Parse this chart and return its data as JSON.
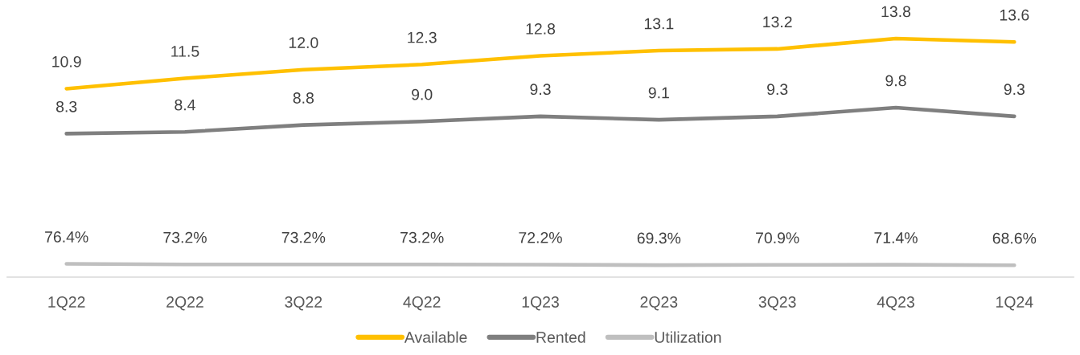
{
  "chart_data": {
    "type": "line",
    "categories": [
      "1Q22",
      "2Q22",
      "3Q22",
      "4Q22",
      "1Q23",
      "2Q23",
      "3Q23",
      "4Q23",
      "1Q24"
    ],
    "series": [
      {
        "name": "Available",
        "color": "#ffc000",
        "values": [
          10.9,
          11.5,
          12.0,
          12.3,
          12.8,
          13.1,
          13.2,
          13.8,
          13.6
        ],
        "value_labels": [
          "10.9",
          "11.5",
          "12.0",
          "12.3",
          "12.8",
          "13.1",
          "13.2",
          "13.8",
          "13.6"
        ]
      },
      {
        "name": "Rented",
        "color": "#7f7f7f",
        "values": [
          8.3,
          8.4,
          8.8,
          9.0,
          9.3,
          9.1,
          9.3,
          9.8,
          9.3
        ],
        "value_labels": [
          "8.3",
          "8.4",
          "8.8",
          "9.0",
          "9.3",
          "9.1",
          "9.3",
          "9.8",
          "9.3"
        ]
      },
      {
        "name": "Utilization",
        "color": "#bfbfbf",
        "values": [
          0.764,
          0.732,
          0.732,
          0.732,
          0.722,
          0.693,
          0.709,
          0.714,
          0.686
        ],
        "value_labels": [
          "76.4%",
          "73.2%",
          "73.2%",
          "73.2%",
          "72.2%",
          "69.3%",
          "70.9%",
          "71.4%",
          "68.6%"
        ]
      }
    ],
    "tick_labels": "x",
    "legend": "bottom",
    "line_style": "solid"
  }
}
